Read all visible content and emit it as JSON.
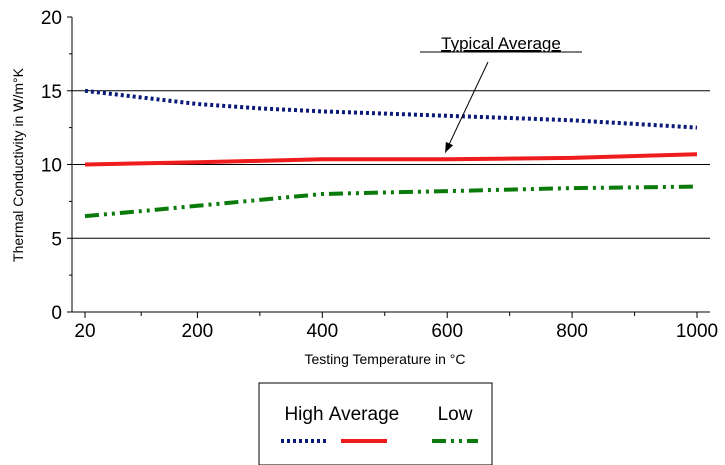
{
  "chart_data": {
    "type": "line",
    "title": "",
    "xlabel": "Testing Temperature in °C",
    "ylabel": "Thermal Conductivity in W/m°K",
    "xlim": [
      20,
      1000
    ],
    "ylim": [
      0,
      20
    ],
    "x_ticks": [
      20,
      200,
      400,
      600,
      800,
      1000
    ],
    "y_ticks": [
      0,
      5,
      10,
      15,
      20
    ],
    "y_grid": [
      5,
      10,
      15
    ],
    "annotation": {
      "text": "Typical Average",
      "points_to": {
        "x": 600,
        "y": 10.4
      }
    },
    "legend_position": "bottom-center",
    "series": [
      {
        "name": "High",
        "color": "#0a1a7a",
        "style": "dotted",
        "x": [
          20,
          100,
          200,
          300,
          400,
          500,
          600,
          700,
          800,
          900,
          1000
        ],
        "y": [
          15.0,
          14.6,
          14.1,
          13.8,
          13.6,
          13.45,
          13.3,
          13.15,
          13.0,
          12.75,
          12.5
        ]
      },
      {
        "name": "Average",
        "color": "#ee1c1c",
        "style": "solid",
        "x": [
          20,
          200,
          400,
          600,
          800,
          1000
        ],
        "y": [
          10.0,
          10.15,
          10.35,
          10.35,
          10.45,
          10.7
        ]
      },
      {
        "name": "Low",
        "color": "#0a7a0a",
        "style": "dash-dot-dot",
        "x": [
          20,
          100,
          200,
          300,
          400,
          500,
          600,
          700,
          800,
          900,
          1000
        ],
        "y": [
          6.5,
          6.8,
          7.2,
          7.6,
          8.0,
          8.1,
          8.2,
          8.3,
          8.4,
          8.45,
          8.5
        ]
      }
    ]
  }
}
